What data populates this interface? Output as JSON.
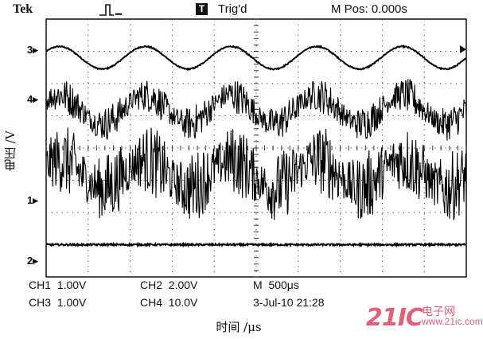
{
  "header": {
    "brand": "Tek",
    "trig_icon": "pulse-icon",
    "trig_badge": "T",
    "trig_status": "Trig'd",
    "m_pos": "M Pos: 0.000s"
  },
  "ylabel": "电压 /V",
  "xlabel": "时间 /μs",
  "markers": {
    "ch3": "3",
    "ch4": "4",
    "ch1": "1",
    "ch2": "2"
  },
  "readout": {
    "ch1": "CH1  1.00V",
    "ch2": "CH2  2.00V",
    "ch3": "CH3  1.00V",
    "ch4": "CH4  10.0V",
    "timebase": "M  500μs",
    "date": "3-Jul-10 21:28"
  },
  "watermark": {
    "logo": "21IC",
    "cn": "电子网",
    "url": "www.21ic.com"
  },
  "chart_data": {
    "type": "line",
    "xlabel": "时间 /μs",
    "ylabel": "电压 /V",
    "grid": true,
    "xlim_div": [
      0,
      10
    ],
    "ylim_div": [
      -4,
      4
    ],
    "series": [
      {
        "name": "3",
        "kind": "sine",
        "level_div": 2.8,
        "amplitude_div": 0.35,
        "cycles": 4.9,
        "noise_div": 0.02,
        "color": "#000000"
      },
      {
        "name": "4",
        "kind": "noisy-sine",
        "level_div": 1.2,
        "amplitude_div": 0.45,
        "cycles": 4.9,
        "noise_div": 0.55,
        "color": "#000000"
      },
      {
        "name": "1",
        "kind": "noisy-sine",
        "level_div": -0.8,
        "amplitude_div": 0.45,
        "cycles": 4.9,
        "noise_div": 1.1,
        "color": "#000000"
      },
      {
        "name": "2",
        "kind": "flat",
        "level_div": -3.0,
        "amplitude_div": 0.0,
        "cycles": 0,
        "noise_div": 0.05,
        "color": "#000000"
      }
    ]
  }
}
